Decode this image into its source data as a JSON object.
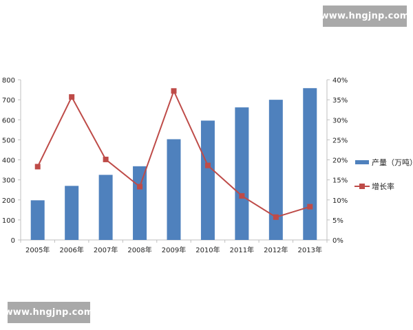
{
  "watermarks": {
    "top": "www.hngjnp.com",
    "bottom": "www.hngjnp.com"
  },
  "colors": {
    "bar": "#4f81bd",
    "line": "#be4b48",
    "axis": "#bfbfbf",
    "text": "#222222"
  },
  "chart_data": {
    "type": "bar",
    "title": "",
    "categories": [
      "2005年",
      "2006年",
      "2007年",
      "2008年",
      "2009年",
      "2010年",
      "2011年",
      "2012年",
      "2013年"
    ],
    "series": [
      {
        "name": "产量（万吨）",
        "type": "bar",
        "axis": "left",
        "values": [
          198,
          270,
          325,
          368,
          503,
          596,
          662,
          700,
          758
        ]
      },
      {
        "name": "增长率",
        "type": "line",
        "axis": "right",
        "values": [
          18.3,
          35.7,
          20.1,
          13.3,
          37.2,
          18.6,
          11.0,
          5.7,
          8.3
        ]
      }
    ],
    "y_left": {
      "min": 0,
      "max": 800,
      "ticks": [
        "0",
        "100",
        "200",
        "300",
        "400",
        "500",
        "600",
        "700",
        "800"
      ]
    },
    "y_right": {
      "min": 0,
      "max": 40,
      "ticks": [
        "0%",
        "5%",
        "10%",
        "15%",
        "20%",
        "25%",
        "30%",
        "35%",
        "40%"
      ]
    },
    "grid": false,
    "legend": "right"
  }
}
